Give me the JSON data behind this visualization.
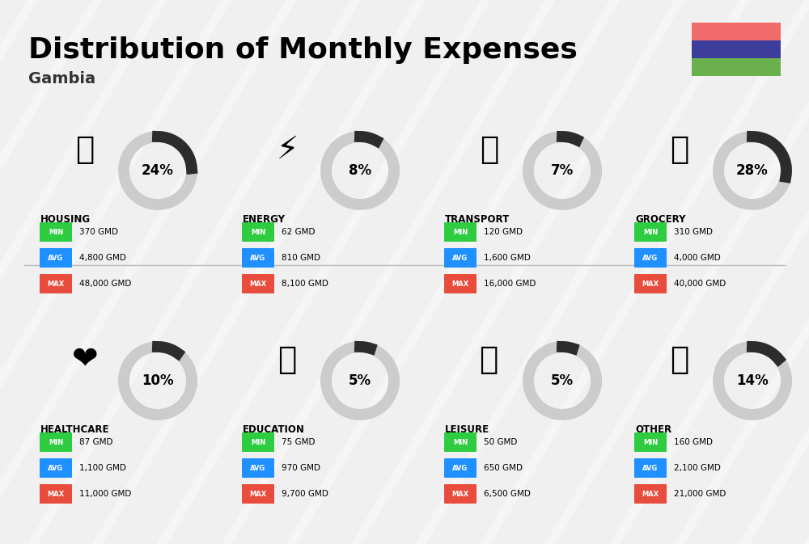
{
  "title": "Distribution of Monthly Expenses",
  "subtitle": "Gambia",
  "background_color": "#f0f0f0",
  "flag_colors": [
    "#f26b6b",
    "#3d3d9c",
    "#6ab04c"
  ],
  "categories": [
    {
      "name": "HOUSING",
      "percent": 24,
      "min_val": "370 GMD",
      "avg_val": "4,800 GMD",
      "max_val": "48,000 GMD",
      "row": 0,
      "col": 0
    },
    {
      "name": "ENERGY",
      "percent": 8,
      "min_val": "62 GMD",
      "avg_val": "810 GMD",
      "max_val": "8,100 GMD",
      "row": 0,
      "col": 1
    },
    {
      "name": "TRANSPORT",
      "percent": 7,
      "min_val": "120 GMD",
      "avg_val": "1,600 GMD",
      "max_val": "16,000 GMD",
      "row": 0,
      "col": 2
    },
    {
      "name": "GROCERY",
      "percent": 28,
      "min_val": "310 GMD",
      "avg_val": "4,000 GMD",
      "max_val": "40,000 GMD",
      "row": 0,
      "col": 3
    },
    {
      "name": "HEALTHCARE",
      "percent": 10,
      "min_val": "87 GMD",
      "avg_val": "1,100 GMD",
      "max_val": "11,000 GMD",
      "row": 1,
      "col": 0
    },
    {
      "name": "EDUCATION",
      "percent": 5,
      "min_val": "75 GMD",
      "avg_val": "970 GMD",
      "max_val": "9,700 GMD",
      "row": 1,
      "col": 1
    },
    {
      "name": "LEISURE",
      "percent": 5,
      "min_val": "50 GMD",
      "avg_val": "650 GMD",
      "max_val": "6,500 GMD",
      "row": 1,
      "col": 2
    },
    {
      "name": "OTHER",
      "percent": 14,
      "min_val": "160 GMD",
      "avg_val": "2,100 GMD",
      "max_val": "21,000 GMD",
      "row": 1,
      "col": 3
    }
  ],
  "min_color": "#2ecc40",
  "avg_color": "#1e90ff",
  "max_color": "#e74c3c",
  "label_color": "#ffffff",
  "ring_color_active": "#2c2c2c",
  "ring_color_bg": "#cccccc"
}
